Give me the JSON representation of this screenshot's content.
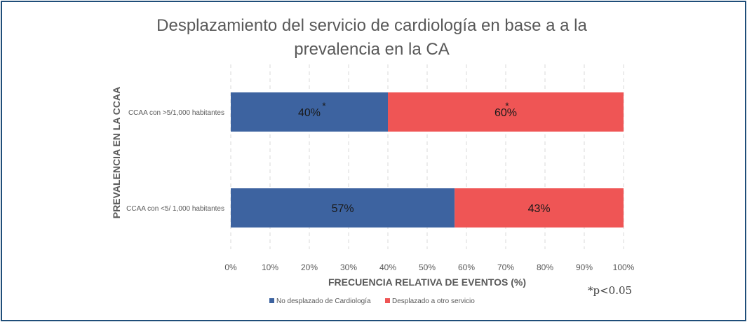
{
  "chart_data": {
    "type": "bar",
    "orientation": "horizontal",
    "stacked": true,
    "title_lines": [
      "Desplazamiento del servicio de cardiología en base a a la",
      "prevalencia en la CA"
    ],
    "xlabel": "FRECUENCIA RELATIVA DE EVENTOS (%)",
    "ylabel": "PREVALENCIA EN LA CCAA",
    "xlim": [
      0,
      100
    ],
    "x_ticks": [
      "0%",
      "10%",
      "20%",
      "30%",
      "40%",
      "50%",
      "60%",
      "70%",
      "80%",
      "90%",
      "100%"
    ],
    "grid": "vertical",
    "categories": [
      "CCAA con >5/1,000 habitantes",
      "CCAA con <5/ 1,000 habitantes"
    ],
    "series": [
      {
        "name": "No desplazado de Cardiología",
        "color": "#3d63a0",
        "values": [
          40,
          57
        ],
        "labels": [
          "40%",
          "57%"
        ],
        "marks": [
          "*",
          ""
        ]
      },
      {
        "name": "Desplazado a otro servicio",
        "color": "#ef5555",
        "values": [
          60,
          43
        ],
        "labels": [
          "60%",
          "43%"
        ],
        "marks": [
          "*",
          ""
        ]
      }
    ],
    "legend_position": "bottom",
    "annotation": "*p<0.05"
  }
}
